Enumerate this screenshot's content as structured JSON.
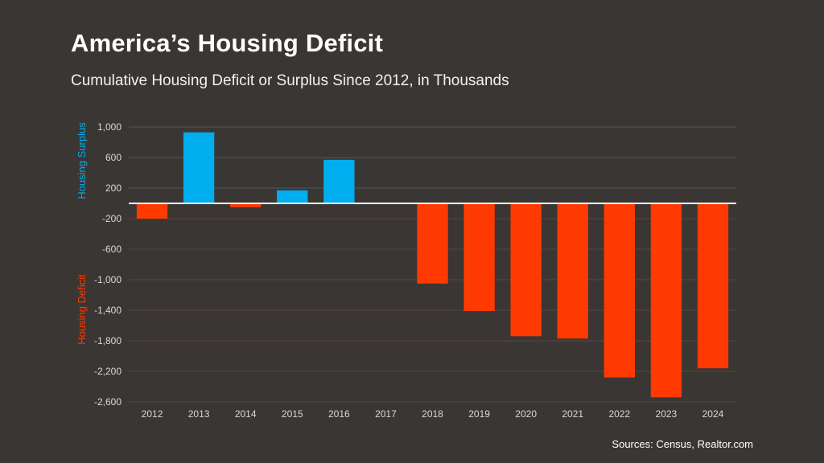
{
  "title": "America’s Housing Deficit",
  "subtitle": "Cumulative Housing Deficit or Surplus Since 2012, in Thousands",
  "source": "Sources: Census, Realtor.com",
  "colors": {
    "surplus": "#00aeef",
    "deficit": "#ff3a00",
    "background": "#3a3634",
    "zero_line": "#ffffff",
    "grid": "#4f4a47"
  },
  "chart_data": {
    "type": "bar",
    "title": "America’s Housing Deficit",
    "subtitle": "Cumulative Housing Deficit or Surplus Since 2012, in Thousands",
    "categories": [
      "2012",
      "2013",
      "2014",
      "2015",
      "2016",
      "2017",
      "2018",
      "2019",
      "2020",
      "2021",
      "2022",
      "2023",
      "2024"
    ],
    "values": [
      -200,
      930,
      -50,
      170,
      570,
      0,
      -1050,
      -1410,
      -1740,
      -1770,
      -2280,
      -2540,
      -2160
    ],
    "ylim": [
      -2600,
      1000
    ],
    "yticks": [
      1000,
      600,
      200,
      -200,
      -600,
      -1000,
      -1400,
      -1800,
      -2200,
      -2600
    ],
    "ytick_labels": [
      "1,000",
      "600",
      "200",
      "-200",
      "-600",
      "-1,000",
      "-1,400",
      "-1,800",
      "-2,200",
      "-2,600"
    ],
    "ylabel_positive": "Housing Surplus",
    "ylabel_negative": "Housing Deficit",
    "xlabel": "",
    "grid": true
  }
}
